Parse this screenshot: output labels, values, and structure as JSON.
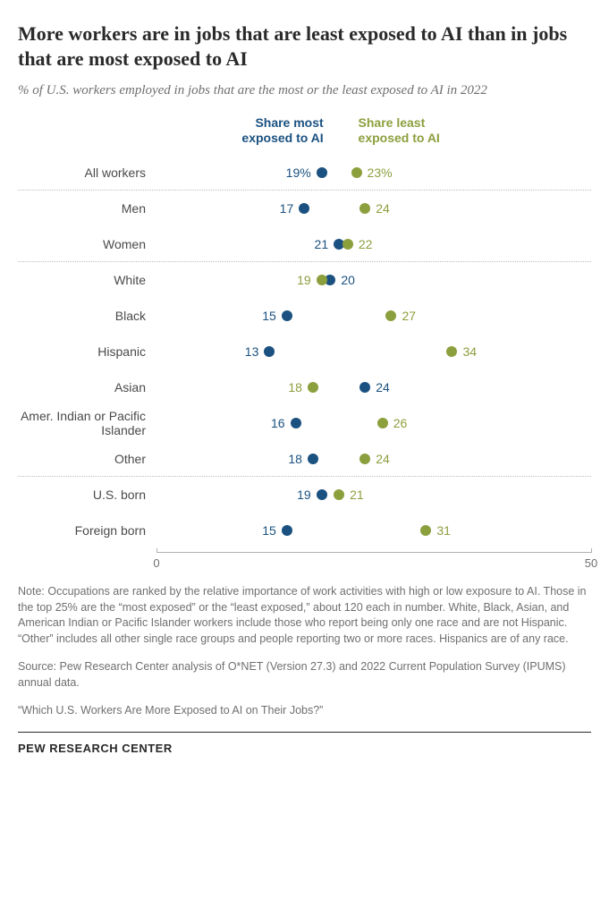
{
  "title": "More workers are in jobs that are least exposed to AI than in jobs that are most exposed to AI",
  "subtitle": "% of U.S. workers employed in jobs that are the most or the least exposed to AI in 2022",
  "legend": {
    "most": "Share most exposed to AI",
    "least": "Share least exposed to AI"
  },
  "chart": {
    "type": "dot",
    "xmin": 0,
    "xmax": 50,
    "ticks": [
      0,
      50
    ],
    "colors": {
      "most": "#1a5180",
      "least": "#8c9f3d"
    },
    "dot_radius": 6,
    "label_fontsize": 14,
    "value_fontsize": 14,
    "background": "#ffffff",
    "rows": [
      {
        "label": "All workers",
        "most": 19,
        "least": 23,
        "suffix": "%",
        "sep": true
      },
      {
        "label": "Men",
        "most": 17,
        "least": 24
      },
      {
        "label": "Women",
        "most": 21,
        "least": 22,
        "sep": true
      },
      {
        "label": "White",
        "most": 20,
        "least": 19
      },
      {
        "label": "Black",
        "most": 15,
        "least": 27
      },
      {
        "label": "Hispanic",
        "most": 13,
        "least": 34
      },
      {
        "label": "Asian",
        "most": 24,
        "least": 18
      },
      {
        "label": "Amer. Indian or Pacific Islander",
        "most": 16,
        "least": 26
      },
      {
        "label": "Other",
        "most": 18,
        "least": 24,
        "sep": true
      },
      {
        "label": "U.S. born",
        "most": 19,
        "least": 21
      },
      {
        "label": "Foreign born",
        "most": 15,
        "least": 31
      }
    ]
  },
  "note": "Note: Occupations are ranked by the relative importance of work activities with high or low exposure to AI. Those in the top 25% are the “most exposed” or the “least exposed,” about 120 each in number. White, Black, Asian, and American Indian or Pacific Islander workers include those who report being only one race and are not Hispanic. “Other” includes all other single race groups and people reporting two or more races. Hispanics are of any race.",
  "source": "Source: Pew Research Center analysis of O*NET (Version 27.3) and 2022 Current Population Survey (IPUMS) annual data.",
  "footer_quote": "“Which U.S. Workers Are More Exposed to AI on Their Jobs?”",
  "attribution": "PEW RESEARCH CENTER"
}
